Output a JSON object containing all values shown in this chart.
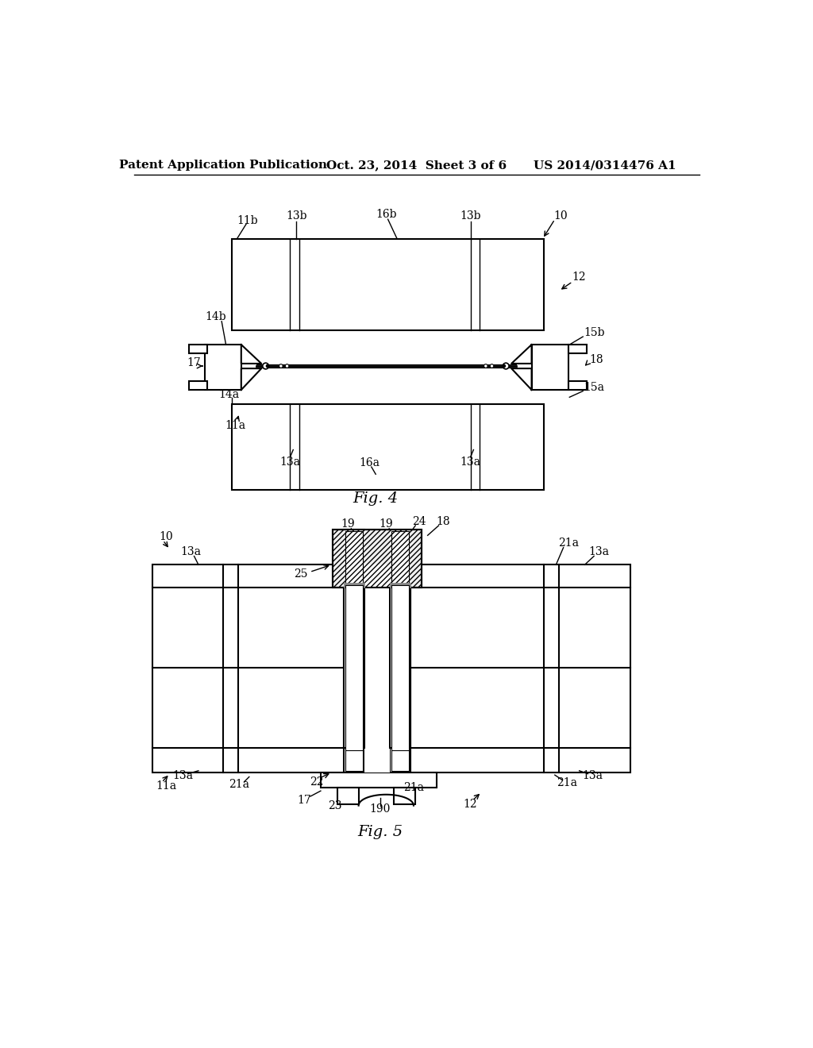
{
  "bg_color": "#ffffff",
  "line_color": "#000000",
  "header_text": "Patent Application Publication",
  "header_date": "Oct. 23, 2014  Sheet 3 of 6",
  "header_patent": "US 2014/0314476 A1",
  "fig4_label": "Fig. 4",
  "fig5_label": "Fig. 5"
}
